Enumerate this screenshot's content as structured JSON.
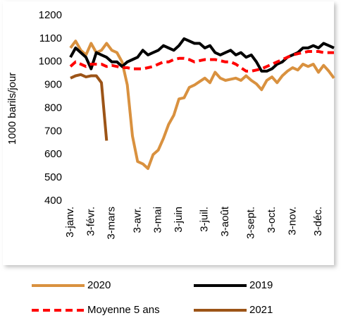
{
  "chart_data": {
    "type": "line",
    "y_axis_label": "1000 barils/jour",
    "categories": [
      "3-janv.",
      null,
      null,
      null,
      "3-févr.",
      null,
      null,
      null,
      "3-mars",
      null,
      null,
      null,
      null,
      "3-avr.",
      null,
      null,
      null,
      "3-mai",
      null,
      null,
      null,
      "3-juin",
      null,
      null,
      null,
      null,
      "3-juil.",
      null,
      null,
      null,
      "3-août",
      null,
      null,
      null,
      null,
      "3-sept.",
      null,
      null,
      null,
      "3-oct.",
      null,
      null,
      null,
      "3-nov.",
      null,
      null,
      null,
      null,
      "3-déc.",
      null,
      null,
      null
    ],
    "series": [
      {
        "name": "2020",
        "color": "#d9913f",
        "values": [
          1060,
          1090,
          1050,
          1030,
          1080,
          1040,
          1050,
          1080,
          1050,
          1040,
          1000,
          900,
          680,
          570,
          560,
          540,
          600,
          620,
          670,
          730,
          770,
          840,
          845,
          890,
          900,
          915,
          930,
          910,
          955,
          930,
          920,
          925,
          930,
          920,
          940,
          920,
          905,
          880,
          920,
          935,
          910,
          940,
          960,
          975,
          965,
          990,
          980,
          990,
          955,
          985,
          960,
          930
        ]
      },
      {
        "name": "2019",
        "color": "#000000",
        "values": [
          1020,
          1060,
          1040,
          1020,
          970,
          1040,
          1030,
          1020,
          1000,
          1000,
          980,
          1000,
          1010,
          1020,
          1050,
          1030,
          1040,
          1050,
          1070,
          1060,
          1050,
          1070,
          1100,
          1090,
          1080,
          1080,
          1060,
          1070,
          1040,
          1030,
          1040,
          1050,
          1030,
          1040,
          1020,
          1030,
          1000,
          960,
          960,
          970,
          990,
          1000,
          1020,
          1030,
          1040,
          1060,
          1060,
          1070,
          1060,
          1080,
          1070,
          1060
        ]
      },
      {
        "name": "Moyenne 5 ans",
        "color": "#ff0000",
        "dashed": true,
        "values": [
          980,
          1000,
          990,
          980,
          990,
          990,
          990,
          980,
          985,
          980,
          975,
          975,
          970,
          970,
          970,
          975,
          980,
          990,
          1000,
          1000,
          1010,
          1015,
          1015,
          1010,
          1000,
          1005,
          1010,
          1010,
          1010,
          1005,
          1000,
          1000,
          990,
          975,
          960,
          960,
          965,
          970,
          980,
          990,
          1000,
          1010,
          1020,
          1030,
          1035,
          1040,
          1045,
          1045,
          1045,
          1040,
          1040,
          1040
        ]
      },
      {
        "name": "2021",
        "color": "#9c5417",
        "values": [
          930,
          940,
          945,
          935,
          940,
          940,
          910,
          660,
          null,
          null,
          null,
          null,
          null,
          null,
          null,
          null,
          null,
          null,
          null,
          null,
          null,
          null,
          null,
          null,
          null,
          null,
          null,
          null,
          null,
          null,
          null,
          null,
          null,
          null,
          null,
          null,
          null,
          null,
          null,
          null,
          null,
          null,
          null,
          null,
          null,
          null,
          null,
          null,
          null,
          null,
          null,
          null
        ]
      }
    ],
    "ylim": [
      400,
      1200
    ],
    "yticks": [
      400,
      500,
      600,
      700,
      800,
      900,
      1000,
      1100,
      1200
    ]
  }
}
